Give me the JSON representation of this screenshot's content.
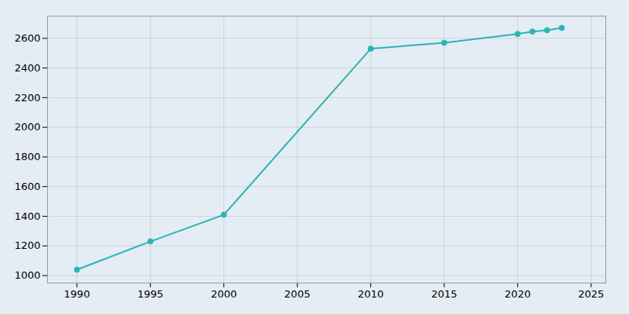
{
  "chart_data": {
    "type": "line",
    "x": [
      1990,
      1995,
      2000,
      2010,
      2015,
      2020,
      2021,
      2022,
      2023
    ],
    "values": [
      1040,
      1230,
      1410,
      2530,
      2570,
      2630,
      2645,
      2655,
      2671
    ],
    "color": "#2ab5b5",
    "marker": "circle",
    "xlim": [
      1988,
      2026
    ],
    "ylim": [
      950,
      2750
    ],
    "xticks": [
      1990,
      1995,
      2000,
      2005,
      2010,
      2015,
      2020,
      2025
    ],
    "yticks": [
      1000,
      1200,
      1400,
      1600,
      1800,
      2000,
      2200,
      2400,
      2600
    ],
    "grid": true
  }
}
